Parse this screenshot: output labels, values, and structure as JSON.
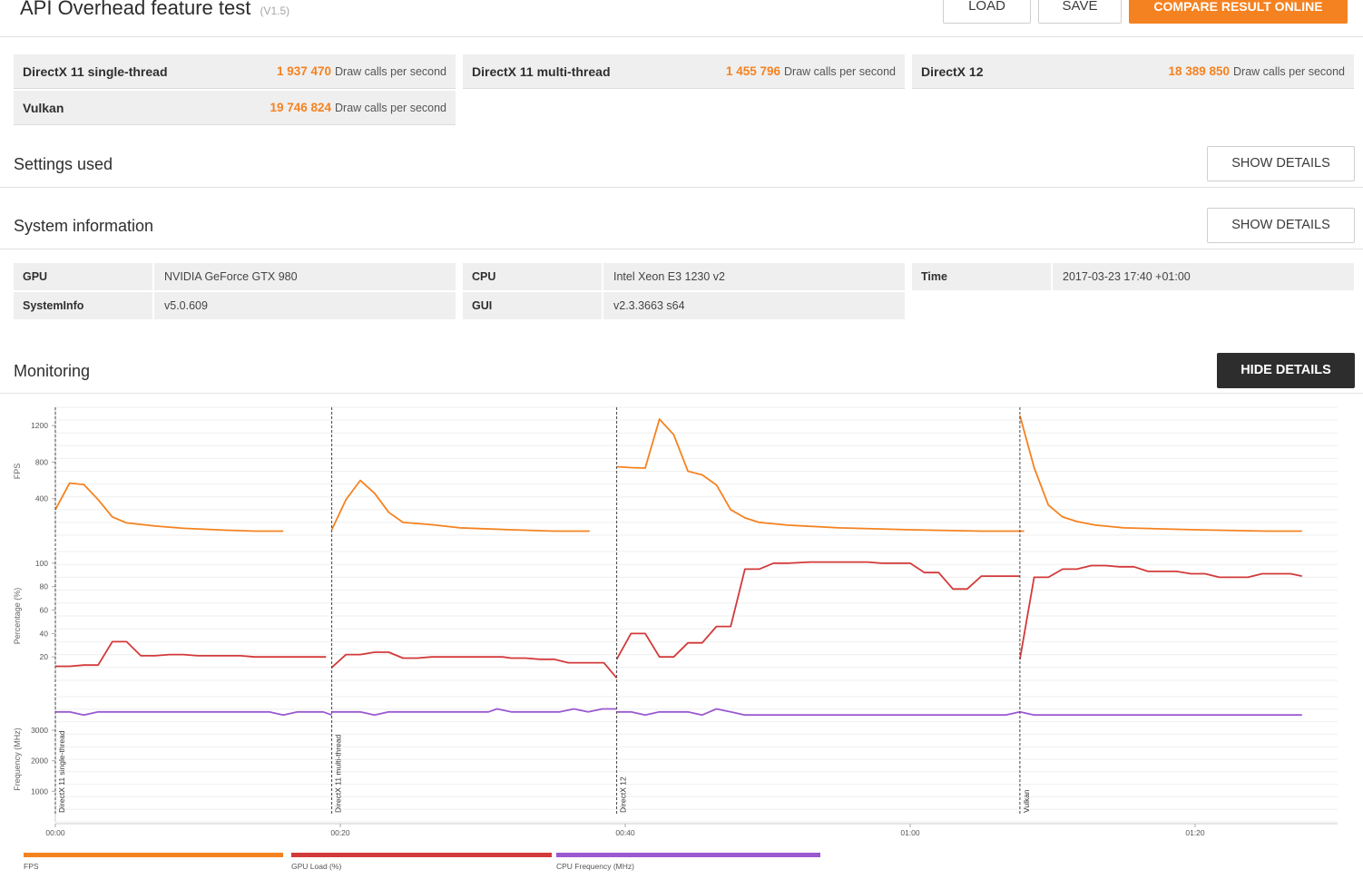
{
  "header": {
    "title": "API Overhead feature test",
    "version": "(V1.5)",
    "load_label": "LOAD",
    "save_label": "SAVE",
    "compare_label": "COMPARE RESULT ONLINE"
  },
  "scores": [
    {
      "name": "DirectX 11 single-thread",
      "value": "1 937 470",
      "unit": "Draw calls per second"
    },
    {
      "name": "DirectX 11 multi-thread",
      "value": "1 455 796",
      "unit": "Draw calls per second"
    },
    {
      "name": "DirectX 12",
      "value": "18 389 850",
      "unit": "Draw calls per second"
    },
    {
      "name": "Vulkan",
      "value": "19 746 824",
      "unit": "Draw calls per second"
    }
  ],
  "settings": {
    "title": "Settings used",
    "button": "SHOW DETAILS"
  },
  "system": {
    "title": "System information",
    "button": "SHOW DETAILS",
    "rows": [
      {
        "label": "GPU",
        "value": "NVIDIA GeForce GTX 980"
      },
      {
        "label": "CPU",
        "value": "Intel Xeon E3 1230 v2"
      },
      {
        "label": "Time",
        "value": "2017-03-23 17:40 +01:00"
      },
      {
        "label": "SystemInfo",
        "value": "v5.0.609"
      },
      {
        "label": "GUI",
        "value": "v2.3.3663 s64"
      }
    ]
  },
  "monitoring": {
    "title": "Monitoring",
    "button": "HIDE DETAILS"
  },
  "colors": {
    "accent": "#f58220",
    "fps": "#f58220",
    "gpu": "#d33a3a",
    "cpu": "#9b59d0",
    "dark_button": "#2d2d2d"
  },
  "chart_data": {
    "type": "line",
    "x_unit": "time (mm:ss)",
    "xlim": [
      0,
      90
    ],
    "x_ticks": [
      0,
      20,
      40,
      60,
      80
    ],
    "x_tick_labels": [
      "00:00",
      "00:20",
      "00:40",
      "01:00",
      "01:20"
    ],
    "markers": [
      {
        "x": 0,
        "label": "DirectX 11 single-thread"
      },
      {
        "x": 19.4,
        "label": "DirectX 11 multi-thread"
      },
      {
        "x": 39.4,
        "label": "DirectX 12"
      },
      {
        "x": 67.7,
        "label": "Vulkan"
      }
    ],
    "panels": [
      {
        "ylabel": "FPS",
        "ylim": [
          0,
          1400
        ],
        "yticks": [
          400,
          800,
          1200
        ],
        "series": [
          {
            "name": "FPS",
            "color": "#f58220",
            "segments": [
              [
                [
                  0,
                  280
                ],
                [
                  1,
                  570
                ],
                [
                  2,
                  555
                ],
                [
                  3,
                  390
                ],
                [
                  4,
                  200
                ],
                [
                  5,
                  135
                ],
                [
                  7,
                  100
                ],
                [
                  9,
                  75
                ],
                [
                  12,
                  55
                ],
                [
                  14,
                  45
                ],
                [
                  16,
                  45
                ]
              ],
              [
                [
                  19.4,
                  60
                ],
                [
                  20.4,
                  390
                ],
                [
                  21.4,
                  600
                ],
                [
                  22.4,
                  460
                ],
                [
                  23.4,
                  250
                ],
                [
                  24.4,
                  140
                ],
                [
                  26.4,
                  115
                ],
                [
                  28.4,
                  80
                ],
                [
                  32,
                  60
                ],
                [
                  35,
                  45
                ],
                [
                  37.5,
                  45
                ]
              ],
              [
                [
                  39.4,
                  750
                ],
                [
                  40.4,
                  740
                ],
                [
                  41.4,
                  735
                ],
                [
                  42.4,
                  1270
                ],
                [
                  43.4,
                  1100
                ],
                [
                  44.4,
                  700
                ],
                [
                  45.4,
                  660
                ],
                [
                  46.4,
                  550
                ],
                [
                  47.4,
                  280
                ],
                [
                  48.4,
                  190
                ],
                [
                  49.4,
                  140
                ],
                [
                  51.4,
                  110
                ],
                [
                  55,
                  80
                ],
                [
                  60,
                  60
                ],
                [
                  65,
                  45
                ],
                [
                  68,
                  45
                ]
              ],
              [
                [
                  67.7,
                  1310
                ],
                [
                  68.7,
                  740
                ],
                [
                  69.7,
                  330
                ],
                [
                  70.7,
                  200
                ],
                [
                  71.7,
                  150
                ],
                [
                  73,
                  110
                ],
                [
                  75,
                  80
                ],
                [
                  80,
                  60
                ],
                [
                  85,
                  45
                ],
                [
                  87.5,
                  45
                ]
              ]
            ]
          }
        ]
      },
      {
        "ylabel": "Percentage (%)",
        "ylim": [
          0,
          110
        ],
        "yticks": [
          20,
          40,
          60,
          80,
          100
        ],
        "series": [
          {
            "name": "GPU Load (%)",
            "color": "#d33a3a",
            "segments": [
              [
                [
                  0,
                  12
                ],
                [
                  1,
                  12
                ],
                [
                  2,
                  13
                ],
                [
                  3,
                  13
                ],
                [
                  4,
                  33
                ],
                [
                  5,
                  33
                ],
                [
                  6,
                  21
                ],
                [
                  7,
                  21
                ],
                [
                  8,
                  22
                ],
                [
                  9,
                  22
                ],
                [
                  10,
                  21
                ],
                [
                  13,
                  21
                ],
                [
                  14,
                  20
                ],
                [
                  19,
                  20
                ]
              ],
              [
                [
                  19.4,
                  11
                ],
                [
                  20.4,
                  22
                ],
                [
                  21.4,
                  22
                ],
                [
                  22.4,
                  24
                ],
                [
                  23.4,
                  24
                ],
                [
                  24.4,
                  19
                ],
                [
                  25.4,
                  19
                ],
                [
                  26.4,
                  20
                ],
                [
                  31.4,
                  20
                ],
                [
                  32,
                  19
                ],
                [
                  33,
                  19
                ],
                [
                  34,
                  18
                ],
                [
                  35,
                  18
                ],
                [
                  36,
                  15
                ],
                [
                  38.5,
                  15
                ],
                [
                  39.4,
                  2
                ]
              ],
              [
                [
                  39.4,
                  18
                ],
                [
                  40.4,
                  40
                ],
                [
                  41.4,
                  40
                ],
                [
                  42.4,
                  20
                ],
                [
                  43.4,
                  20
                ],
                [
                  44.4,
                  32
                ],
                [
                  45.4,
                  32
                ],
                [
                  46.4,
                  46
                ],
                [
                  47.4,
                  46
                ],
                [
                  48.4,
                  95
                ],
                [
                  49.4,
                  95
                ],
                [
                  50.4,
                  100
                ],
                [
                  51.4,
                  100
                ],
                [
                  53,
                  101
                ],
                [
                  57,
                  101
                ],
                [
                  58,
                  100
                ],
                [
                  60,
                  100
                ],
                [
                  61,
                  92
                ],
                [
                  62,
                  92
                ],
                [
                  63,
                  78
                ],
                [
                  64,
                  78
                ],
                [
                  65,
                  89
                ],
                [
                  67.7,
                  89
                ]
              ],
              [
                [
                  67.7,
                  18
                ],
                [
                  68.7,
                  88
                ],
                [
                  69.7,
                  88
                ],
                [
                  70.7,
                  95
                ],
                [
                  71.7,
                  95
                ],
                [
                  72.7,
                  98
                ],
                [
                  73.7,
                  98
                ],
                [
                  74.7,
                  97
                ],
                [
                  75.7,
                  97
                ],
                [
                  76.7,
                  93
                ],
                [
                  78.7,
                  93
                ],
                [
                  79.7,
                  91
                ],
                [
                  80.7,
                  91
                ],
                [
                  81.7,
                  88
                ],
                [
                  83.7,
                  88
                ],
                [
                  84.7,
                  91
                ],
                [
                  86.7,
                  91
                ],
                [
                  87.5,
                  89
                ]
              ]
            ]
          }
        ]
      },
      {
        "ylabel": "Frequency (MHz)",
        "ylim": [
          0,
          4100
        ],
        "yticks": [
          1000,
          2000,
          3000
        ],
        "series": [
          {
            "name": "CPU Frequency (MHz)",
            "color": "#9b59d0",
            "segments": [
              [
                [
                  0,
                  3600
                ],
                [
                  1,
                  3600
                ],
                [
                  2,
                  3500
                ],
                [
                  3,
                  3600
                ],
                [
                  12,
                  3600
                ],
                [
                  15,
                  3600
                ],
                [
                  16,
                  3500
                ],
                [
                  17,
                  3600
                ],
                [
                  18.8,
                  3600
                ],
                [
                  19.4,
                  3500
                ]
              ],
              [
                [
                  19.4,
                  3600
                ],
                [
                  21.4,
                  3600
                ],
                [
                  22.4,
                  3500
                ],
                [
                  23.4,
                  3600
                ],
                [
                  30.4,
                  3600
                ],
                [
                  31,
                  3700
                ],
                [
                  32,
                  3600
                ],
                [
                  35.4,
                  3600
                ],
                [
                  36.4,
                  3700
                ],
                [
                  37.4,
                  3600
                ],
                [
                  38.4,
                  3700
                ],
                [
                  39.4,
                  3700
                ]
              ],
              [
                [
                  39.4,
                  3600
                ],
                [
                  40.4,
                  3600
                ],
                [
                  41.4,
                  3500
                ],
                [
                  42.4,
                  3600
                ],
                [
                  44.4,
                  3600
                ],
                [
                  45.4,
                  3500
                ],
                [
                  46.4,
                  3700
                ],
                [
                  47.4,
                  3600
                ],
                [
                  48.4,
                  3500
                ],
                [
                  66.7,
                  3500
                ],
                [
                  67.7,
                  3600
                ]
              ],
              [
                [
                  67.7,
                  3600
                ],
                [
                  68.7,
                  3500
                ],
                [
                  87.5,
                  3500
                ]
              ]
            ]
          }
        ]
      }
    ]
  }
}
